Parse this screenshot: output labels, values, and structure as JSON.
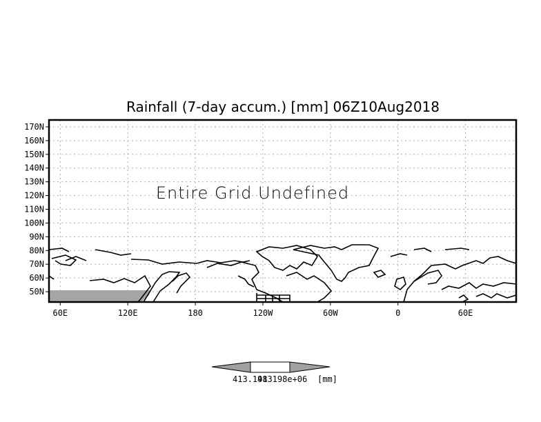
{
  "chart_data": {
    "type": "heatmap",
    "title": "Rainfall (7-day accum.) [mm] 06Z10Aug2018",
    "annotation": "Entire Grid Undefined",
    "xlabel": "",
    "ylabel": "",
    "xlim_lon_east": [
      50,
      465
    ],
    "ylim_lat": [
      42.5,
      175
    ],
    "grid": true,
    "x_tick_labels": [
      "60E",
      "120E",
      "180",
      "120W",
      "60W",
      "0",
      "60E"
    ],
    "x_tick_values": [
      60,
      120,
      180,
      240,
      300,
      360,
      420
    ],
    "y_tick_labels": [
      "170N",
      "160N",
      "150N",
      "140N",
      "130N",
      "120N",
      "110N",
      "100N",
      "90N",
      "80N",
      "70N",
      "60N",
      "50N"
    ],
    "y_tick_values": [
      170,
      160,
      150,
      140,
      130,
      120,
      110,
      100,
      90,
      80,
      70,
      60,
      50
    ],
    "colorbar": {
      "labels": [
        "413.198",
        "413198e+06",
        "[mm]"
      ],
      "colors": [
        "#a0a0a0",
        "#ffffff",
        "#a0a0a0"
      ]
    },
    "shading_color": "#a5a5a5"
  }
}
